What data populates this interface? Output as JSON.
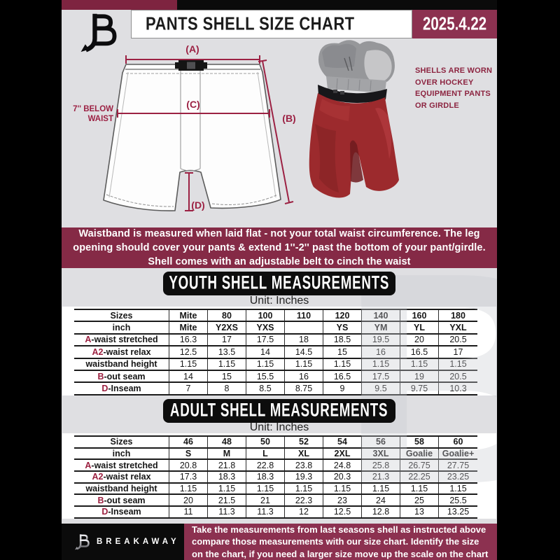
{
  "header": {
    "title": "PANTS SHELL SIZE CHART",
    "date": "2025.4.22"
  },
  "diagram": {
    "label_a": "(A)",
    "label_b": "(B)",
    "label_c": "(C)",
    "label_d": "(D)",
    "waist_note": [
      "7'' BELOW",
      "WAIST"
    ]
  },
  "photo_note": {
    "lines": [
      "SHELLS ARE WORN",
      "OVER HOCKEY",
      "EQUIPMENT PANTS",
      "OR GIRDLE"
    ]
  },
  "notice": {
    "lines": [
      "Waistband is measured when laid flat - not your total waist circumference. The leg",
      "opening should cover your pants & extend 1''-2'' past the bottom of your pant/girdle.",
      "Shell comes with an adjustable belt to cinch the waist"
    ]
  },
  "youth": {
    "banner": "YOUTH SHELL MEASUREMENTS",
    "unit": "Unit: Inches",
    "rows": [
      {
        "prefix": "",
        "label": "Sizes",
        "bold": true,
        "values": [
          "Mite",
          "80",
          "100",
          "110",
          "120",
          "140",
          "160",
          "180"
        ]
      },
      {
        "prefix": "",
        "label": "inch",
        "bold": true,
        "values": [
          "Mite",
          "Y2XS",
          "YXS",
          "",
          "YS",
          "YM",
          "YL",
          "YXL"
        ]
      },
      {
        "prefix": "A",
        "label": "-waist stretched",
        "bold": false,
        "values": [
          "16.3",
          "17",
          "17.5",
          "18",
          "18.5",
          "19.5",
          "20",
          "20.5"
        ]
      },
      {
        "prefix": "A2",
        "label": "-waist relax",
        "bold": false,
        "values": [
          "12.5",
          "13.5",
          "14",
          "14.5",
          "15",
          "16",
          "16.5",
          "17"
        ]
      },
      {
        "prefix": "",
        "label": "waistband height",
        "bold": false,
        "values": [
          "1.15",
          "1.15",
          "1.15",
          "1.15",
          "1.15",
          "1.15",
          "1.15",
          "1.15"
        ]
      },
      {
        "prefix": "B",
        "label": "-out seam",
        "bold": false,
        "values": [
          "14",
          "15",
          "15.5",
          "16",
          "16.5",
          "17.5",
          "19",
          "20.5"
        ]
      },
      {
        "prefix": "D",
        "label": "-Inseam",
        "bold": false,
        "values": [
          "7",
          "8",
          "8.5",
          "8.75",
          "9",
          "9.5",
          "9.75",
          "10.3"
        ]
      }
    ]
  },
  "adult": {
    "banner": "ADULT SHELL MEASUREMENTS",
    "unit": "Unit: Inches",
    "rows": [
      {
        "prefix": "",
        "label": "Sizes",
        "bold": true,
        "values": [
          "46",
          "48",
          "50",
          "52",
          "54",
          "56",
          "58",
          "60"
        ]
      },
      {
        "prefix": "",
        "label": "inch",
        "bold": true,
        "values": [
          "S",
          "M",
          "L",
          "XL",
          "2XL",
          "3XL",
          "Goalie",
          "Goalie+"
        ]
      },
      {
        "prefix": "A",
        "label": "-waist stretched",
        "bold": false,
        "values": [
          "20.8",
          "21.8",
          "22.8",
          "23.8",
          "24.8",
          "25.8",
          "26.75",
          "27.75"
        ]
      },
      {
        "prefix": "A2",
        "label": "-waist relax",
        "bold": false,
        "values": [
          "17.3",
          "18.3",
          "18.3",
          "19.3",
          "20.3",
          "21.3",
          "22.25",
          "23.25"
        ]
      },
      {
        "prefix": "",
        "label": "waistband height",
        "bold": false,
        "values": [
          "1.15",
          "1.15",
          "1.15",
          "1.15",
          "1.15",
          "1.15",
          "1.15",
          "1.15"
        ]
      },
      {
        "prefix": "B",
        "label": "-out seam",
        "bold": false,
        "values": [
          "20",
          "21.5",
          "21",
          "22.3",
          "23",
          "24",
          "25",
          "25.5"
        ]
      },
      {
        "prefix": "D",
        "label": "-Inseam",
        "bold": false,
        "values": [
          "11",
          "11.3",
          "11.3",
          "12",
          "12.5",
          "12.8",
          "13",
          "13.25"
        ]
      }
    ]
  },
  "footer": {
    "brand": "BREAKAWAY",
    "lines": [
      "Take the measurements from last seasons shell as instructed above",
      "compare those measurements with our size chart. Identify the size",
      "on the chart, if you need a larger size move up the scale on the chart"
    ]
  },
  "watermark_letter": "B",
  "colors": {
    "maroon_accent": "#8c3150",
    "notice_maroon": "#852a46",
    "stripe_maroon": "#7e2440",
    "measure_maroon": "#9c2143",
    "prefix_maroon": "#9b1f3f",
    "shell_red": "#9e2a2c",
    "banner_black": "#0d0d0d",
    "page_gray": "#dfdfe2"
  }
}
